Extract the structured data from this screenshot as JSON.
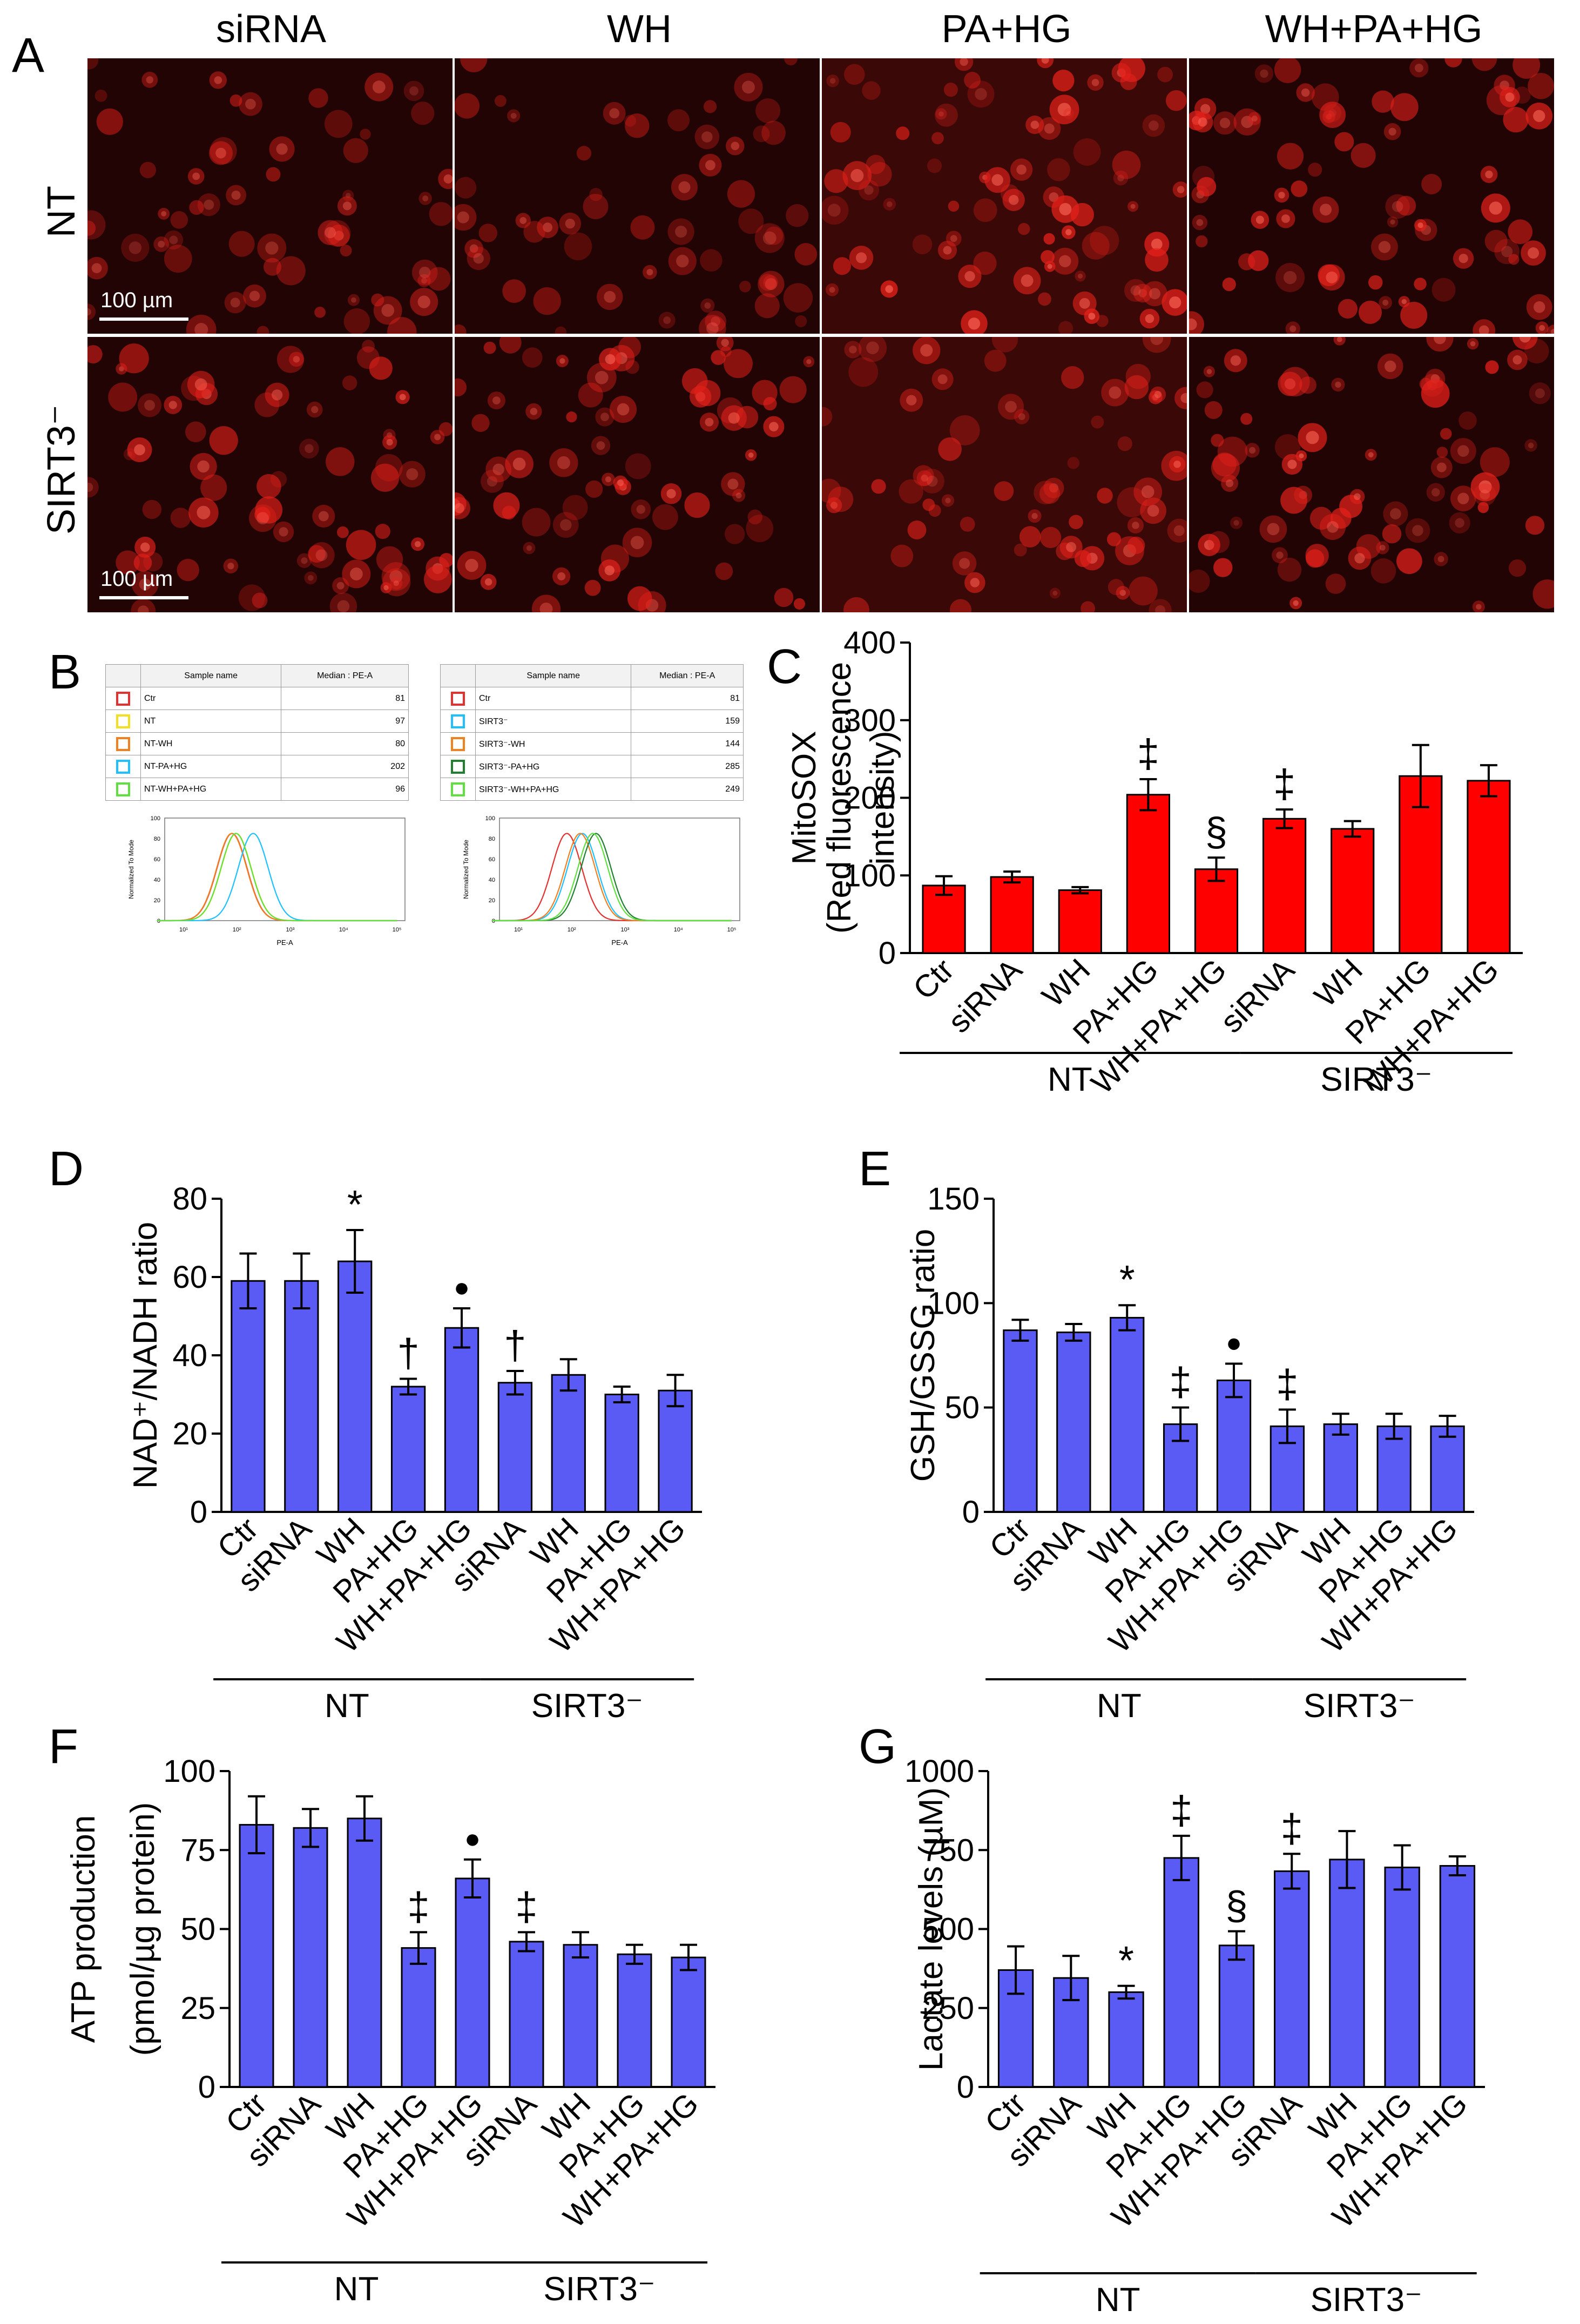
{
  "panel_letters": {
    "A": "A",
    "B": "B",
    "C": "C",
    "D": "D",
    "E": "E",
    "F": "F",
    "G": "G"
  },
  "panel_a": {
    "columns": [
      "siRNA",
      "WH",
      "PA+HG",
      "WH+PA+HG"
    ],
    "rows": [
      "NT",
      "SIRT3⁻"
    ],
    "scale_bar": "100 µm",
    "fluorescence_color": "#e4201a"
  },
  "panel_b": {
    "header": {
      "name": "Sample name",
      "median": "Median : PE-A"
    },
    "left": {
      "samples": [
        {
          "name": "Ctr",
          "value": "81",
          "color": "#e53030"
        },
        {
          "name": "NT",
          "value": "97",
          "color": "#f0e020"
        },
        {
          "name": "NT-WH",
          "value": "80",
          "color": "#f08020"
        },
        {
          "name": "NT-PA+HG",
          "value": "202",
          "color": "#20c0ff"
        },
        {
          "name": "NT-WH+PA+HG",
          "value": "96",
          "color": "#60e040"
        }
      ]
    },
    "right": {
      "samples": [
        {
          "name": "Ctr",
          "value": "81",
          "color": "#e53030"
        },
        {
          "name": "SIRT3⁻",
          "value": "159",
          "color": "#20c0ff"
        },
        {
          "name": "SIRT3⁻-WH",
          "value": "144",
          "color": "#f08020"
        },
        {
          "name": "SIRT3⁻-PA+HG",
          "value": "285",
          "color": "#208030"
        },
        {
          "name": "SIRT3⁻-WH+PA+HG",
          "value": "249",
          "color": "#60e040"
        }
      ]
    },
    "ylabel": "Normalized To Mode",
    "xlabel": "PE-A",
    "yticks": [
      "0",
      "20",
      "40",
      "60",
      "80",
      "100"
    ],
    "xticks": [
      "10¹",
      "10²",
      "10³",
      "10⁴",
      "10⁵"
    ]
  },
  "chart_data": [
    {
      "panel": "C",
      "type": "bar",
      "categories": [
        "Ctr",
        "siRNA",
        "WH",
        "PA+HG",
        "WH+PA+HG",
        "siRNA",
        "WH",
        "PA+HG",
        "WH+PA+HG"
      ],
      "values": [
        87,
        98,
        81,
        204,
        108,
        173,
        160,
        228,
        222
      ],
      "errors": [
        12,
        7,
        4,
        20,
        15,
        12,
        10,
        40,
        20
      ],
      "annotations": [
        "",
        "",
        "",
        "‡",
        "§",
        "‡",
        "",
        "",
        ""
      ],
      "ylabel_lines": [
        "MitoSOX",
        "(Red fluorescence",
        "intensity)"
      ],
      "yticks": [
        0,
        100,
        200,
        300,
        400
      ],
      "ylim": [
        0,
        400
      ],
      "groups": [
        {
          "label": "NT",
          "from": 0,
          "to": 4
        },
        {
          "label": "SIRT3⁻",
          "from": 5,
          "to": 8
        }
      ],
      "bar_color": "#ff0000"
    },
    {
      "panel": "D",
      "type": "bar",
      "categories": [
        "Ctr",
        "siRNA",
        "WH",
        "PA+HG",
        "WH+PA+HG",
        "siRNA",
        "WH",
        "PA+HG",
        "WH+PA+HG"
      ],
      "values": [
        59,
        59,
        64,
        32,
        47,
        33,
        35,
        30,
        31
      ],
      "errors": [
        7,
        7,
        8,
        2,
        5,
        3,
        4,
        2,
        4
      ],
      "annotations": [
        "",
        "",
        "*",
        "†",
        "●",
        "†",
        "",
        "",
        ""
      ],
      "ylabel_lines": [
        "NAD⁺/NADH ratio"
      ],
      "yticks": [
        0,
        20,
        40,
        60,
        80
      ],
      "ylim": [
        0,
        80
      ],
      "groups": [
        {
          "label": "NT",
          "from": 0,
          "to": 4
        },
        {
          "label": "SIRT3⁻",
          "from": 5,
          "to": 8
        }
      ],
      "bar_color": "#5a5af5"
    },
    {
      "panel": "E",
      "type": "bar",
      "categories": [
        "Ctr",
        "siRNA",
        "WH",
        "PA+HG",
        "WH+PA+HG",
        "siRNA",
        "WH",
        "PA+HG",
        "WH+PA+HG"
      ],
      "values": [
        87,
        86,
        93,
        42,
        63,
        41,
        42,
        41,
        41
      ],
      "errors": [
        5,
        4,
        6,
        8,
        8,
        8,
        5,
        6,
        5
      ],
      "annotations": [
        "",
        "",
        "*",
        "‡",
        "●",
        "‡",
        "",
        "",
        ""
      ],
      "ylabel_lines": [
        "GSH/GSSG ratio"
      ],
      "yticks": [
        0,
        50,
        100,
        150
      ],
      "ylim": [
        0,
        150
      ],
      "groups": [
        {
          "label": "NT",
          "from": 0,
          "to": 4
        },
        {
          "label": "SIRT3⁻",
          "from": 5,
          "to": 8
        }
      ],
      "bar_color": "#5a5af5"
    },
    {
      "panel": "F",
      "type": "bar",
      "categories": [
        "Ctr",
        "siRNA",
        "WH",
        "PA+HG",
        "WH+PA+HG",
        "siRNA",
        "WH",
        "PA+HG",
        "WH+PA+HG"
      ],
      "values": [
        83,
        82,
        85,
        44,
        66,
        46,
        45,
        42,
        41
      ],
      "errors": [
        9,
        6,
        7,
        5,
        6,
        3,
        4,
        3,
        4
      ],
      "annotations": [
        "",
        "",
        "",
        "‡",
        "●",
        "‡",
        "",
        "",
        ""
      ],
      "ylabel_lines": [
        "ATP production",
        "(pmol/µg protein)"
      ],
      "yticks": [
        0,
        25,
        50,
        75,
        100
      ],
      "ylim": [
        0,
        100
      ],
      "groups": [
        {
          "label": "NT",
          "from": 0,
          "to": 4
        },
        {
          "label": "SIRT3⁻",
          "from": 5,
          "to": 8
        }
      ],
      "bar_color": "#5a5af5"
    },
    {
      "panel": "G",
      "type": "bar",
      "categories": [
        "Ctr",
        "siRNA",
        "WH",
        "PA+HG",
        "WH+PA+HG",
        "siRNA",
        "WH",
        "PA+HG",
        "WH+PA+HG"
      ],
      "values": [
        370,
        345,
        300,
        725,
        448,
        683,
        720,
        695,
        700
      ],
      "errors": [
        75,
        70,
        20,
        70,
        45,
        55,
        90,
        70,
        30
      ],
      "annotations": [
        "",
        "",
        "*",
        "‡",
        "§",
        "‡",
        "",
        "",
        ""
      ],
      "ylabel_lines": [
        "Lactate levels (µM)"
      ],
      "yticks": [
        0,
        250,
        500,
        750,
        1000
      ],
      "ylim": [
        0,
        1000
      ],
      "groups": [
        {
          "label": "NT",
          "from": 0,
          "to": 4
        },
        {
          "label": "SIRT3⁻",
          "from": 5,
          "to": 8
        }
      ],
      "bar_color": "#5a5af5"
    }
  ]
}
